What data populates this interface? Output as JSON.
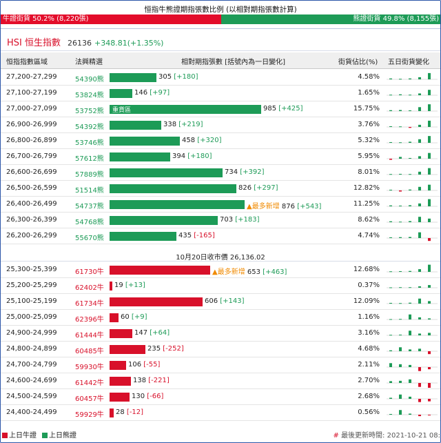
{
  "header": {
    "ratio_title": "恒指牛熊證期指張數比例 (以相對期指張數計算)",
    "bull_label": "牛證街貨 50.2% (8,220張)",
    "bear_label": "熊證街貨 49.8% (8,155張)",
    "bull_ratio": 0.502,
    "bull_color": "#e30d2b",
    "bear_color": "#1d9b57"
  },
  "index": {
    "name": "HSI 恒生指數",
    "value": "26136",
    "change": "+348.81(+1.35%)"
  },
  "columns": {
    "range": "恒指指數區域",
    "code": "法興精選",
    "contracts": "相對期指張數 [括號內為一日變化]",
    "pct": "街貨佔比(%)",
    "five_day": "五日街貨變化"
  },
  "bear_rows": [
    {
      "range": "27,200-27,299",
      "code": "54390熊",
      "count": 305,
      "count_text": "305",
      "change": "[+180]",
      "pct": "4.58%",
      "spark": [
        0.5,
        0.3,
        0.5,
        1.2,
        3.5
      ]
    },
    {
      "range": "27,100-27,199",
      "code": "53824熊",
      "count": 146,
      "count_text": "146",
      "change": "[+97]",
      "pct": "1.65%",
      "spark": [
        0.3,
        0.5,
        0.3,
        1.0,
        3.0
      ]
    },
    {
      "range": "27,000-27,099",
      "code": "53752熊",
      "count": 985,
      "count_text": "985",
      "change": "[+425]",
      "pct": "15.75%",
      "tag": "重貨區",
      "spark": [
        0.5,
        0.6,
        0.4,
        2.2,
        3.8
      ]
    },
    {
      "range": "26,900-26,999",
      "code": "54392熊",
      "count": 338,
      "count_text": "338",
      "change": "[+219]",
      "pct": "3.76%",
      "spark": [
        0.4,
        0.3,
        -0.5,
        1.2,
        3.5
      ]
    },
    {
      "range": "26,800-26,899",
      "code": "53746熊",
      "count": 458,
      "count_text": "458",
      "change": "[+320]",
      "pct": "5.32%",
      "spark": [
        0.4,
        0.3,
        0.6,
        2.0,
        3.8
      ]
    },
    {
      "range": "26,700-26,799",
      "code": "57612熊",
      "count": 394,
      "count_text": "394",
      "change": "[+180]",
      "pct": "5.95%",
      "spark": [
        -0.6,
        1.0,
        0.4,
        1.4,
        3.2
      ]
    },
    {
      "range": "26,600-26,699",
      "code": "57889熊",
      "count": 734,
      "count_text": "734",
      "change": "[+392]",
      "pct": "8.01%",
      "spark": [
        0.3,
        0.4,
        0.3,
        1.6,
        3.6
      ]
    },
    {
      "range": "26,500-26,599",
      "code": "51514熊",
      "count": 826,
      "count_text": "826",
      "change": "[+297]",
      "pct": "12.82%",
      "spark": [
        0.4,
        -0.6,
        0.5,
        2.0,
        3.2
      ]
    },
    {
      "range": "26,400-26,499",
      "code": "54737熊",
      "count": 876,
      "count_text": "876",
      "change": "[+543]",
      "pct": "11.25%",
      "most": "▲最多新增",
      "spark": [
        0.5,
        0.4,
        0.6,
        1.6,
        4.0
      ]
    },
    {
      "range": "26,300-26,399",
      "code": "54768熊",
      "count": 703,
      "count_text": "703",
      "change": "[+183]",
      "pct": "8.62%",
      "spark": [
        0.5,
        0.3,
        0.6,
        3.0,
        2.0
      ]
    },
    {
      "range": "26,200-26,299",
      "code": "55670熊",
      "count": 435,
      "count_text": "435",
      "change": "[-165]",
      "pct": "4.74%",
      "spark": [
        0.4,
        0.5,
        0.6,
        3.2,
        -1.6
      ]
    }
  ],
  "mid_row": "10月20日收市價 26,136.02",
  "bull_rows": [
    {
      "range": "25,300-25,399",
      "code": "61730牛",
      "count": 653,
      "count_text": "653",
      "change": "[+463]",
      "pct": "12.68%",
      "most": "▲最多新增",
      "spark": [
        0.3,
        0.4,
        0.5,
        1.5,
        4.0
      ]
    },
    {
      "range": "25,200-25,299",
      "code": "62402牛",
      "count": 19,
      "count_text": "19",
      "change": "[+13]",
      "pct": "0.37%",
      "spark": [
        0.2,
        0.3,
        0.3,
        0.8,
        1.5
      ]
    },
    {
      "range": "25,100-25,199",
      "code": "61734牛",
      "count": 606,
      "count_text": "606",
      "change": "[+143]",
      "pct": "12.09%",
      "spark": [
        0.4,
        0.3,
        0.5,
        2.8,
        1.4
      ]
    },
    {
      "range": "25,000-25,099",
      "code": "62396牛",
      "count": 60,
      "count_text": "60",
      "change": "[+9]",
      "pct": "1.16%",
      "spark": [
        0.2,
        0.3,
        2.8,
        1.2,
        0.6
      ]
    },
    {
      "range": "24,900-24,999",
      "code": "61444牛",
      "count": 147,
      "count_text": "147",
      "change": "[+64]",
      "pct": "3.16%",
      "spark": [
        0.3,
        0.4,
        2.6,
        1.0,
        1.4
      ]
    },
    {
      "range": "24,800-24,899",
      "code": "60485牛",
      "count": 235,
      "count_text": "235",
      "change": "[-252]",
      "pct": "4.68%",
      "spark": [
        0.5,
        2.2,
        1.0,
        1.4,
        -1.6
      ]
    },
    {
      "range": "24,700-24,799",
      "code": "59930牛",
      "count": 106,
      "count_text": "106",
      "change": "[-55]",
      "pct": "2.11%",
      "spark": [
        2.2,
        1.6,
        1.2,
        -2.2,
        -1.2
      ]
    },
    {
      "range": "24,600-24,699",
      "code": "61442牛",
      "count": 138,
      "count_text": "138",
      "change": "[-221]",
      "pct": "2.70%",
      "spark": [
        1.0,
        1.2,
        2.0,
        -2.2,
        -2.8
      ]
    },
    {
      "range": "24,500-24,599",
      "code": "60457牛",
      "count": 130,
      "count_text": "130",
      "change": "[-66]",
      "pct": "2.68%",
      "spark": [
        0.6,
        2.4,
        1.2,
        -1.8,
        -1.4
      ]
    },
    {
      "range": "24,400-24,499",
      "code": "59929牛",
      "count": 28,
      "count_text": "28",
      "change": "[-12]",
      "pct": "0.56%",
      "spark": [
        0.4,
        2.6,
        0.6,
        -0.8,
        -0.4
      ]
    }
  ],
  "footer": {
    "legend_bull": "上日牛證",
    "legend_bear": "上日熊證",
    "hash": "#",
    "update_label": "最後更新時間: 2021-10-21 08:"
  }
}
